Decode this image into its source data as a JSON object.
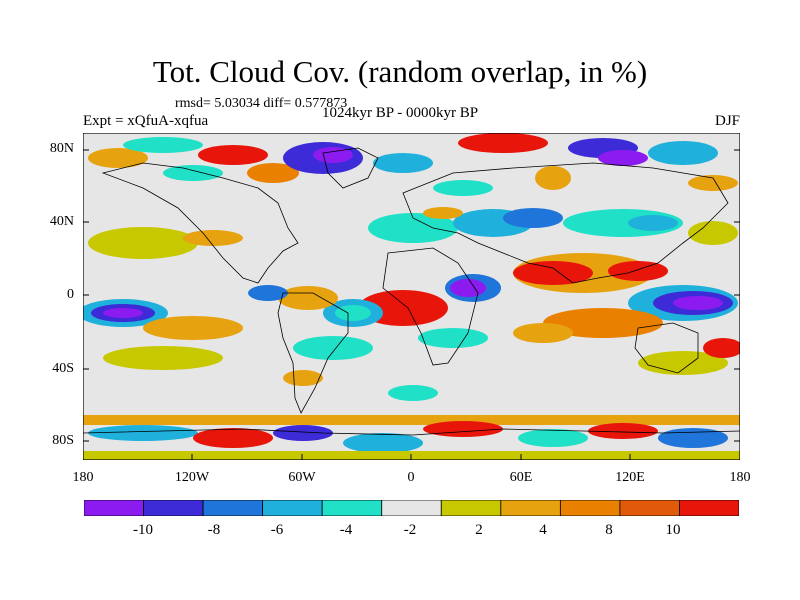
{
  "title": "Tot. Cloud Cov. (random overlap, in %)",
  "stats": "rmsd= 5.03034 diff= 0.577873",
  "experiment": "Expt = xQfuA-xqfua",
  "period": "1024kyr BP - 0000kyr BP",
  "season": "DJF",
  "axes": {
    "y_labels": [
      "80N",
      "40N",
      "0",
      "40S",
      "80S"
    ],
    "x_labels": [
      "180",
      "120W",
      "60W",
      "0",
      "60E",
      "120E",
      "180"
    ]
  },
  "colorbar": {
    "colors": [
      "#8c1bf0",
      "#3c2bd6",
      "#1f75d9",
      "#1fb0dc",
      "#20e0c8",
      "#e6e6e6",
      "#c8c800",
      "#e7a210",
      "#ea8000",
      "#e05a0a",
      "#e8150a"
    ],
    "labels": [
      "-10",
      "-8",
      "-6",
      "-4",
      "-2",
      "2",
      "4",
      "8",
      "10"
    ]
  },
  "map_palette": {
    "land_line": "#000000",
    "background": "#e6e6e6"
  }
}
